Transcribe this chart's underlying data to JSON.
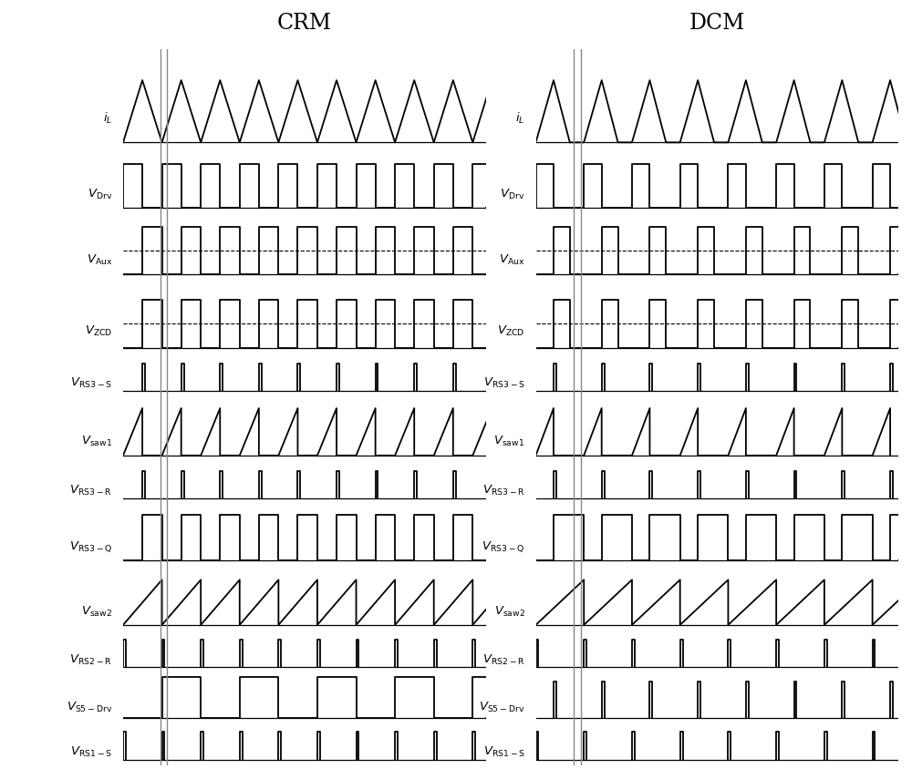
{
  "title_crm": "CRM",
  "title_dcm": "DCM",
  "bg_color": "#ffffff",
  "line_color": "#000000",
  "gray_color": "#888888",
  "T_crm": 1.05,
  "ton_crm": 0.52,
  "T_dcm": 1.3,
  "ton_dcm": 0.48,
  "tdead_dcm": 0.38,
  "gray1_crm": 1.02,
  "gray2_crm": 1.18,
  "gray1_dcm": 1.02,
  "gray2_dcm": 1.22,
  "xmax": 9.8,
  "signal_labels": [
    "iL",
    "VDrv",
    "VAux",
    "VZCD",
    "VRS3S",
    "Vsaw1",
    "VRS3R",
    "VRS3Q",
    "Vsaw2",
    "VRS2R",
    "VS5Drv",
    "VRS1S"
  ],
  "row_heights": [
    1.7,
    1.0,
    1.1,
    1.2,
    0.65,
    1.1,
    0.65,
    1.05,
    1.05,
    0.65,
    0.85,
    0.65
  ]
}
